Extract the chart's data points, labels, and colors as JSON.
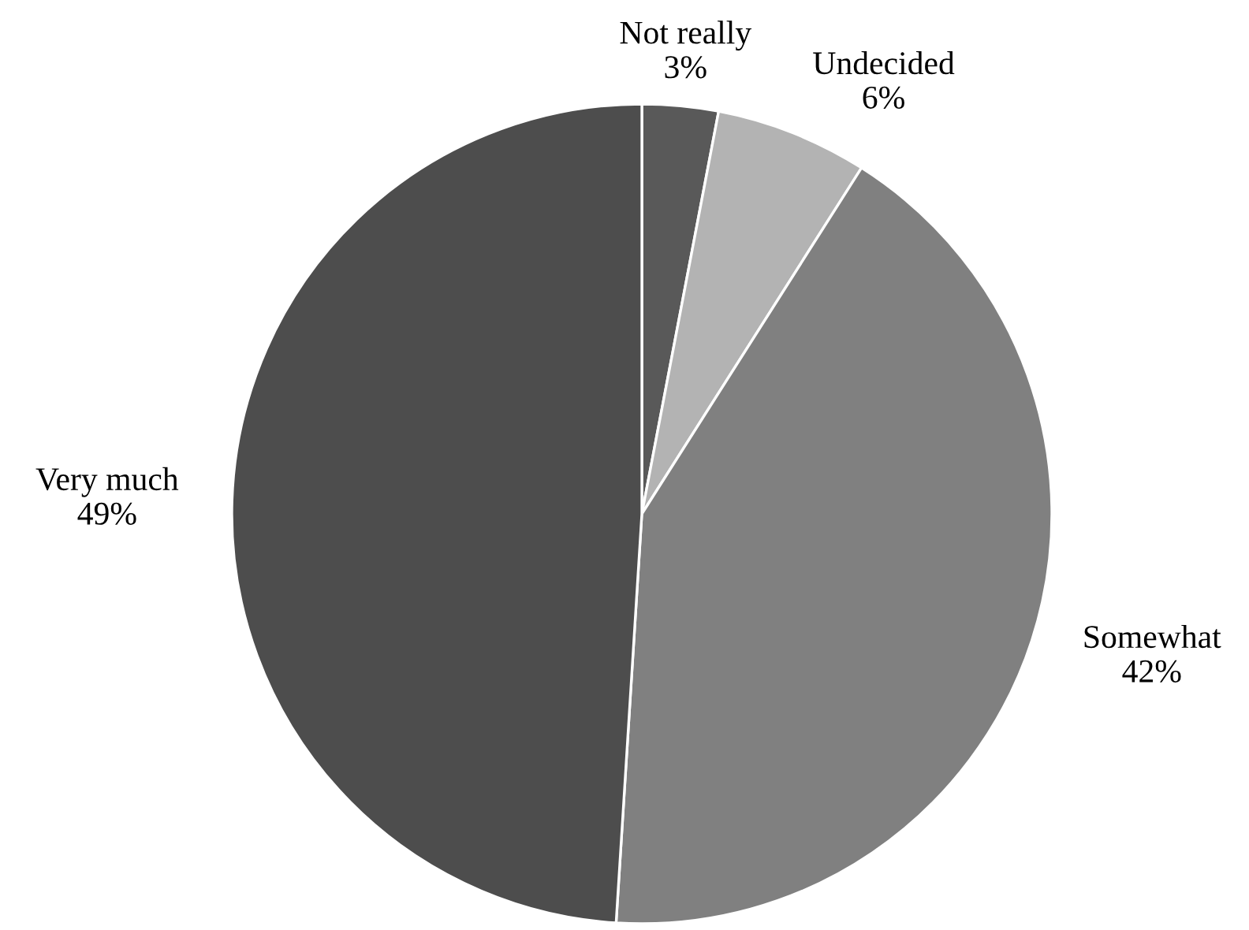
{
  "chart_data": {
    "type": "pie",
    "categories": [
      "Not really",
      "Undecided",
      "Somewhat",
      "Very much"
    ],
    "values": [
      3,
      6,
      42,
      49
    ],
    "value_labels": [
      "3%",
      "6%",
      "42%",
      "49%"
    ],
    "colors": [
      "#595959",
      "#b3b3b3",
      "#808080",
      "#4d4d4d"
    ],
    "legend": false
  }
}
